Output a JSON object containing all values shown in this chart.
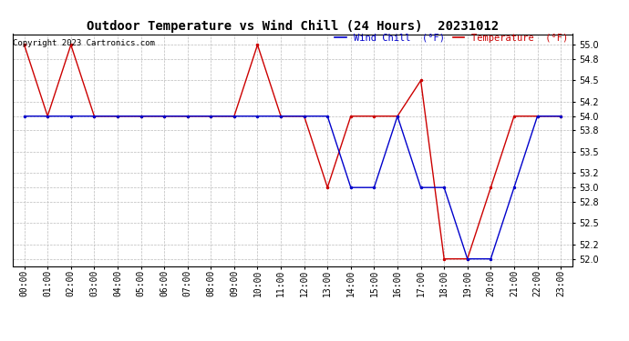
{
  "title": "Outdoor Temperature vs Wind Chill (24 Hours)  20231012",
  "copyright": "Copyright 2023 Cartronics.com",
  "legend_wind_chill": "Wind Chill  (°F)",
  "legend_temperature": "Temperature  (°F)",
  "ylim": [
    51.9,
    55.15
  ],
  "yticks": [
    52.0,
    52.2,
    52.5,
    52.8,
    53.0,
    53.2,
    53.5,
    53.8,
    54.0,
    54.2,
    54.5,
    54.8,
    55.0
  ],
  "background_color": "#ffffff",
  "grid_color": "#bbbbbb",
  "wind_chill_color": "#0000cc",
  "temperature_color": "#cc0000",
  "marker": ".",
  "marker_size": 3,
  "line_width": 1.0,
  "hours": [
    "00:00",
    "01:00",
    "02:00",
    "03:00",
    "04:00",
    "05:00",
    "06:00",
    "07:00",
    "08:00",
    "09:00",
    "10:00",
    "11:00",
    "12:00",
    "13:00",
    "14:00",
    "15:00",
    "16:00",
    "17:00",
    "18:00",
    "19:00",
    "20:00",
    "21:00",
    "22:00",
    "23:00"
  ],
  "temperature": [
    55.0,
    54.0,
    55.0,
    54.0,
    54.0,
    54.0,
    54.0,
    54.0,
    54.0,
    54.0,
    55.0,
    54.0,
    54.0,
    53.0,
    54.0,
    54.0,
    54.0,
    54.5,
    52.0,
    52.0,
    53.0,
    54.0,
    54.0,
    54.0
  ],
  "wind_chill": [
    54.0,
    54.0,
    54.0,
    54.0,
    54.0,
    54.0,
    54.0,
    54.0,
    54.0,
    54.0,
    54.0,
    54.0,
    54.0,
    54.0,
    53.0,
    53.0,
    54.0,
    53.0,
    53.0,
    52.0,
    52.0,
    53.0,
    54.0,
    54.0
  ],
  "title_fontsize": 10,
  "tick_fontsize": 7,
  "legend_fontsize": 7.5
}
